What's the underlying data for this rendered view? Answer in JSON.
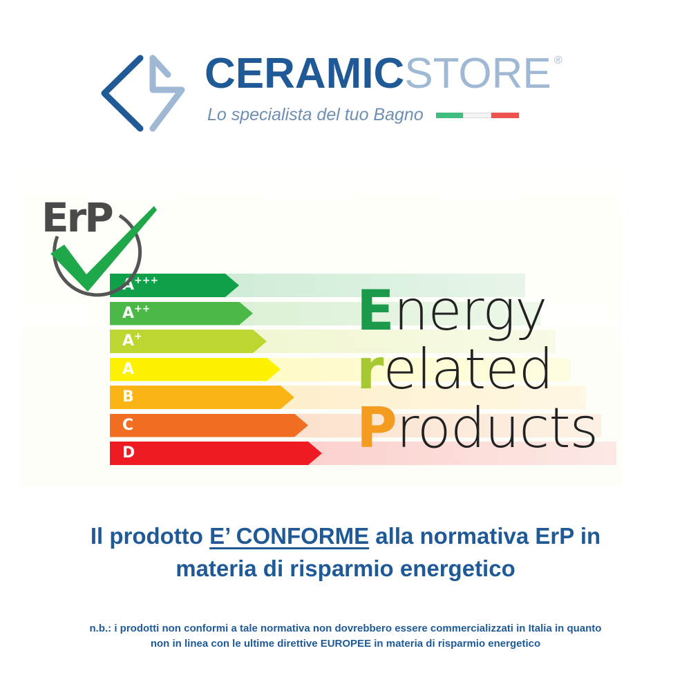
{
  "brand": {
    "name_primary": "CERAMIC",
    "name_secondary": "STORE",
    "registered_mark": "®",
    "tagline": "Lo specialista del tuo Bagno",
    "colors": {
      "primary": "#1f5a96",
      "secondary": "#9fb8d3"
    },
    "flag_colors": [
      "#3fbf7f",
      "#f4f4f4",
      "#ef5350"
    ]
  },
  "erp": {
    "logo_text": "ErP",
    "logo_icon": "checkmark-icon",
    "classes": [
      {
        "label": "A",
        "sup": "+++",
        "color": "#10a04a"
      },
      {
        "label": "A",
        "sup": "++",
        "color": "#4cb848"
      },
      {
        "label": "A",
        "sup": "+",
        "color": "#bdd630"
      },
      {
        "label": "A",
        "sup": "",
        "color": "#fff200"
      },
      {
        "label": "B",
        "sup": "",
        "color": "#fbb416"
      },
      {
        "label": "C",
        "sup": "",
        "color": "#f06f22"
      },
      {
        "label": "D",
        "sup": "",
        "color": "#ed1c24"
      }
    ],
    "words": [
      {
        "initial": "E",
        "rest": "nergy",
        "color": "#1a9a4a"
      },
      {
        "initial": "r",
        "rest": "elated",
        "color": "#a6c832"
      },
      {
        "initial": "P",
        "rest": "roducts",
        "color": "#f39c1f"
      }
    ]
  },
  "headline": {
    "part1": "Il prodotto ",
    "emphasis": "E’ CONFORME",
    "part2": " alla normativa ErP in",
    "line2": "materia di risparmio energetico"
  },
  "note": {
    "line1": "n.b.: i prodotti non conformi a tale normativa non dovrebbero essere commercializzati in Italia in quanto",
    "line2_part1": "non in linea con le ultime direttive ",
    "line2_emphasis": "EUROPEE",
    "line2_part2": " in materia di risparmio energetico"
  }
}
